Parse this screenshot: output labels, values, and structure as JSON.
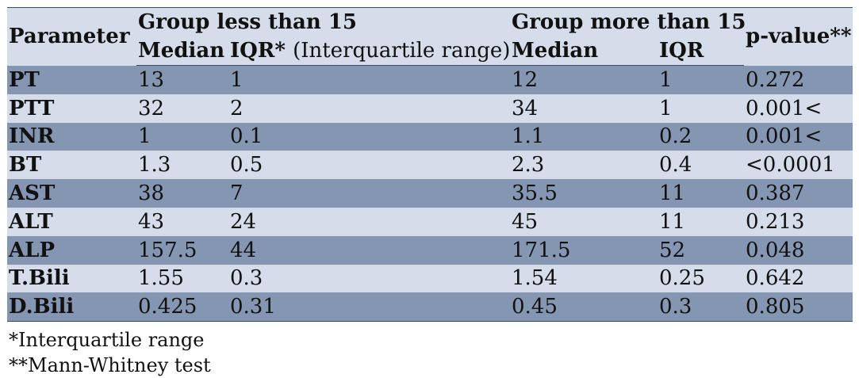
{
  "table": {
    "header": {
      "parameter": "Parameter",
      "group_less": "Group less than 15",
      "group_more": "Group more than 15",
      "p_value": "p-value**",
      "median_less": "Median",
      "iqr_less": "IQR*",
      "iqr_less_note": "(Interquartile range)",
      "median_more": "Median",
      "iqr_more": "IQR"
    },
    "rows": [
      [
        "PT",
        "13",
        "1",
        "12",
        "1",
        "0.272"
      ],
      [
        "PTT",
        "32",
        "2",
        "34",
        "1",
        "0.001<"
      ],
      [
        "INR",
        "1",
        "0.1",
        "1.1",
        "0.2",
        "0.001<"
      ],
      [
        "BT",
        "1.3",
        "0.5",
        "2.3",
        "0.4",
        "<0.0001"
      ],
      [
        "AST",
        "38",
        "7",
        "35.5",
        "11",
        "0.387"
      ],
      [
        "ALT",
        "43",
        "24",
        "45",
        "11",
        "0.213"
      ],
      [
        "ALP",
        "157.5",
        "44",
        "171.5",
        "52",
        "0.048"
      ],
      [
        "T.Bili",
        "1.55",
        "0.3",
        "1.54",
        "0.25",
        "0.642"
      ],
      [
        "D.Bili",
        "0.425",
        "0.31",
        "0.45",
        "0.3",
        "0.805"
      ]
    ]
  },
  "footnotes": [
    "*Interquartile range",
    "**Mann-Whitney test"
  ]
}
